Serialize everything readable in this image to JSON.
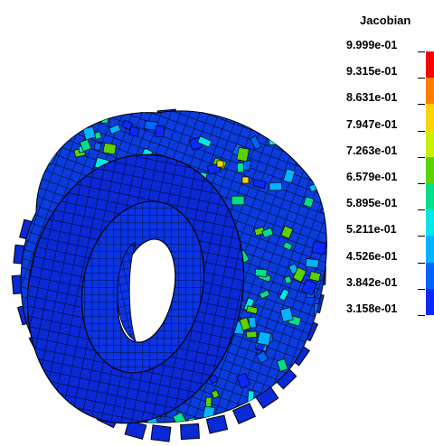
{
  "legend": {
    "title": "Jacobian",
    "entries": [
      {
        "label": "9.999e-01",
        "color": "#ff0000"
      },
      {
        "label": "9.315e-01",
        "color": "#ff7f00"
      },
      {
        "label": "8.631e-01",
        "color": "#ffd200"
      },
      {
        "label": "7.947e-01",
        "color": "#c8f000"
      },
      {
        "label": "7.263e-01",
        "color": "#5ad200"
      },
      {
        "label": "6.579e-01",
        "color": "#00e08a"
      },
      {
        "label": "5.895e-01",
        "color": "#00e8e8"
      },
      {
        "label": "5.211e-01",
        "color": "#00b4ff"
      },
      {
        "label": "4.526e-01",
        "color": "#0064ff"
      },
      {
        "label": "3.842e-01",
        "color": "#0a2aff"
      },
      {
        "label": "3.158e-01",
        "color": "#0000e0"
      }
    ]
  },
  "colors": {
    "mesh_base": "#0a2ad8",
    "mesh_dark": "#071a8c",
    "element_edge": "#000000",
    "accent_low": "#00b4ff",
    "accent_mid": "#00e08a",
    "accent_high": "#ff0000"
  }
}
